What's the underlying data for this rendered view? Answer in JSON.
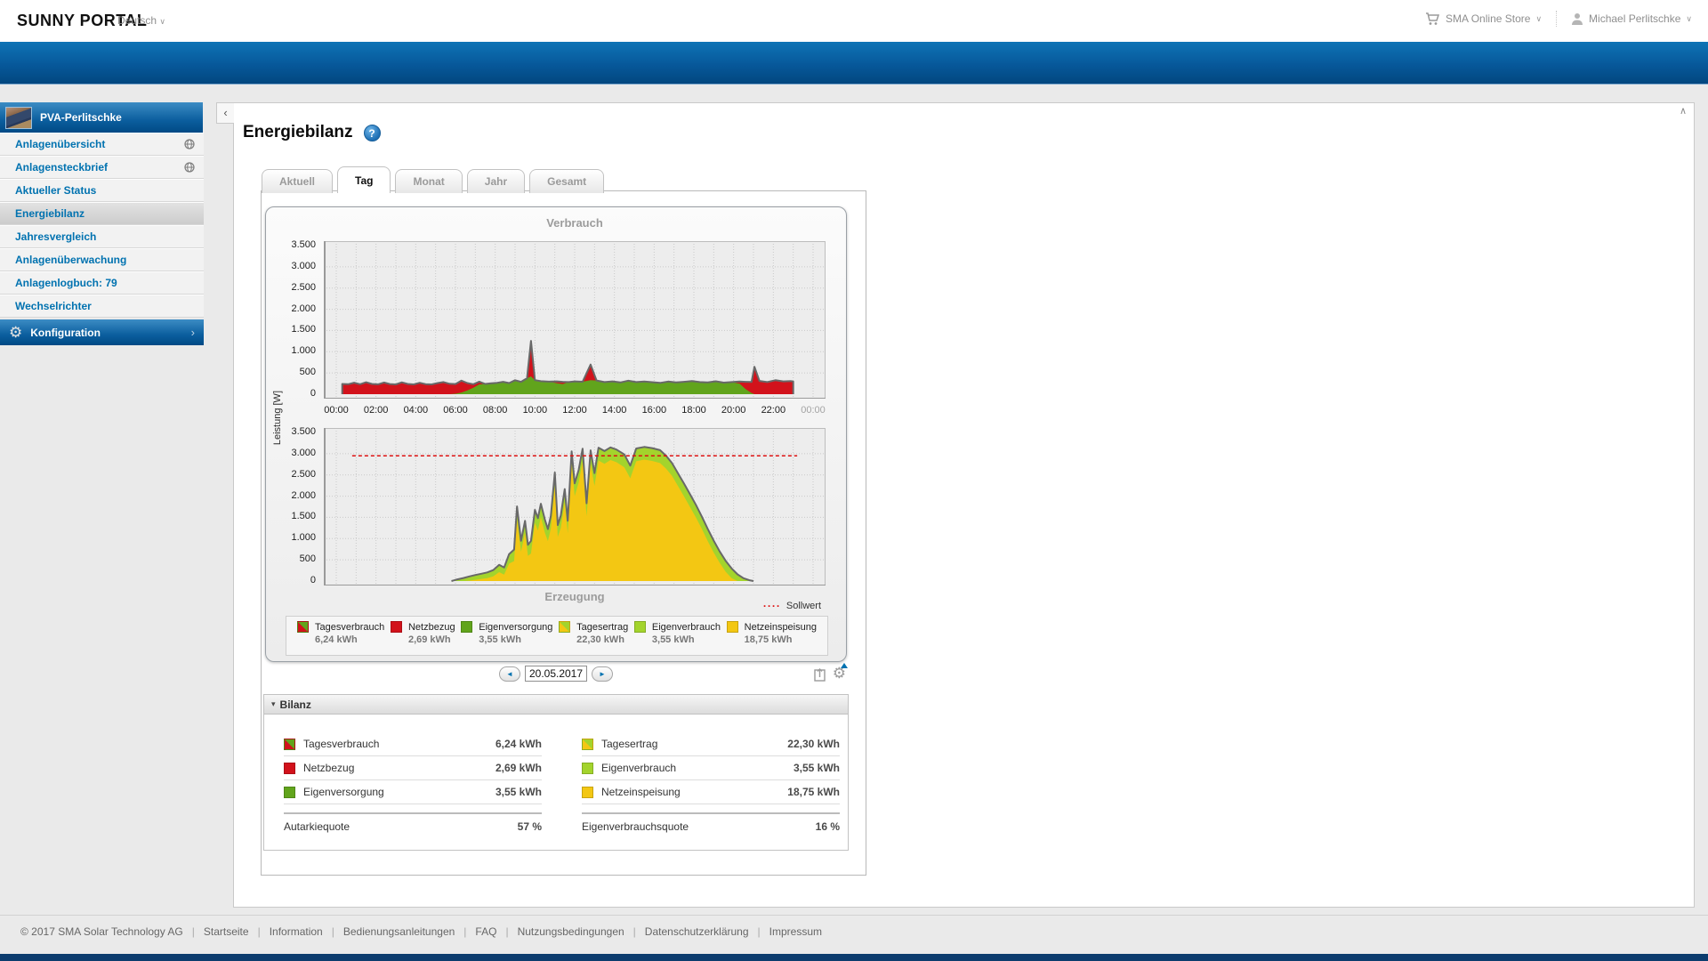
{
  "top_bar": {
    "logo": "SUNNY PORTAL",
    "language": "Deutsch",
    "store": "SMA Online Store",
    "user": "Michael Perlitschke",
    "chevron": "∨"
  },
  "sidebar": {
    "plant_name": "PVA-Perlitschke",
    "items": [
      {
        "label": "Anlagenübersicht",
        "globe": true
      },
      {
        "label": "Anlagensteckbrief",
        "globe": true
      },
      {
        "label": "Aktueller Status",
        "globe": false
      },
      {
        "label": "Energiebilanz",
        "globe": false,
        "active": true
      },
      {
        "label": "Jahresvergleich",
        "globe": false
      },
      {
        "label": "Anlagenüberwachung",
        "globe": false
      },
      {
        "label": "Anlagenlogbuch: 79",
        "globe": false
      },
      {
        "label": "Wechselrichter",
        "globe": false
      }
    ],
    "config_label": "Konfiguration",
    "config_arrow": "›"
  },
  "main": {
    "title": "Energiebilanz",
    "help_glyph": "?",
    "collapse_glyph": "‹",
    "scroll_top_glyph": "∧",
    "tabs": [
      {
        "label": "Aktuell"
      },
      {
        "label": "Tag",
        "active": true
      },
      {
        "label": "Monat"
      },
      {
        "label": "Jahr"
      },
      {
        "label": "Gesamt"
      }
    ],
    "date": "20.05.2017",
    "prev_glyph": "◄",
    "next_glyph": "►"
  },
  "legend": [
    {
      "name": "Tagesverbrauch",
      "value": "6,24 kWh",
      "swatch": "red-green-split"
    },
    {
      "name": "Netzbezug",
      "value": "2,69 kWh",
      "swatch": "red"
    },
    {
      "name": "Eigenversorgung",
      "value": "3,55 kWh",
      "swatch": "green"
    },
    {
      "name": "Tagesertrag",
      "value": "22,30 kWh",
      "swatch": "yellow-lightgreen-split"
    },
    {
      "name": "Eigenverbrauch",
      "value": "3,55 kWh",
      "swatch": "lightgreen"
    },
    {
      "name": "Netzeinspeisung",
      "value": "18,75 kWh",
      "swatch": "yellow"
    }
  ],
  "sollwert": {
    "glyph": "····",
    "label": "Sollwert"
  },
  "bilanz": {
    "header": "Bilanz",
    "collapse_glyph": "▾",
    "rows_left": [
      {
        "name": "Tagesverbrauch",
        "value": "6,24 kWh",
        "swatch": "red-green-split"
      },
      {
        "name": "Netzbezug",
        "value": "2,69 kWh",
        "swatch": "red"
      },
      {
        "name": "Eigenversorgung",
        "value": "3,55 kWh",
        "swatch": "green"
      }
    ],
    "rows_right": [
      {
        "name": "Tagesertrag",
        "value": "22,30 kWh",
        "swatch": "yellow-lightgreen-split"
      },
      {
        "name": "Eigenverbrauch",
        "value": "3,55 kWh",
        "swatch": "lightgreen"
      },
      {
        "name": "Netzeinspeisung",
        "value": "18,75 kWh",
        "swatch": "yellow"
      }
    ],
    "quote_left": {
      "label": "Autarkiequote",
      "value": "57 %"
    },
    "quote_right": {
      "label": "Eigenverbrauchsquote",
      "value": "16 %"
    }
  },
  "footer": {
    "copyright": "© 2017 SMA Solar Technology AG",
    "separator": "|",
    "links": [
      "Startseite",
      "Information",
      "Bedienungsanleitungen",
      "FAQ",
      "Nutzungsbedingungen",
      "Datenschutzerklärung",
      "Impressum"
    ]
  },
  "colors": {
    "brand_blue": "#0072b0",
    "header_gradient_top": "#0e74b6",
    "header_gradient_bottom": "#02477f",
    "consumption_red": "#d2121b",
    "self_supply_green": "#61a41c",
    "self_consumption_green": "#a3d42c",
    "feed_in_yellow": "#f3c713",
    "sollwert_red": "#dd1111",
    "chart_outline_gray": "#686868",
    "plot_background": "#ededed",
    "bottom_band_navy": "#0c3c6e"
  },
  "icons": {
    "cart-icon": "shopping cart",
    "user-icon": "person silhouette",
    "globe-icon": "globe / published on web",
    "gear-icon": "gear (settings)",
    "help-icon": "blue circle question mark",
    "export-icon": "export report page",
    "chart-settings-icon": "gear with blue arrow"
  },
  "chart_data": [
    {
      "name": "verbrauch",
      "type": "area",
      "title": "Verbrauch",
      "ylabel": "Leistung [W]",
      "ylim": [
        0,
        3500
      ],
      "yticks": [
        0,
        500,
        1000,
        1500,
        2000,
        2500,
        3000,
        3500
      ],
      "ytick_labels": [
        "0",
        "500",
        "1.000",
        "1.500",
        "2.000",
        "2.500",
        "3.000",
        "3.500"
      ],
      "xlim_hours": [
        0,
        24
      ],
      "xticks_hours": [
        0,
        2,
        4,
        6,
        8,
        10,
        12,
        14,
        16,
        18,
        20,
        22,
        24
      ],
      "xtick_labels": [
        "00:00",
        "02:00",
        "04:00",
        "06:00",
        "08:00",
        "10:00",
        "12:00",
        "14:00",
        "16:00",
        "18:00",
        "20:00",
        "22:00",
        "00:00"
      ],
      "grid": true,
      "fill_total": "#d2121b",
      "fill_secondary": "#61a41c",
      "series": [
        {
          "name": "Tagesverbrauch gesamt",
          "total_kwh": "6,24 kWh",
          "points_column": 1
        },
        {
          "name": "Eigenversorgung",
          "total_kwh": "3,55 kWh",
          "points_column": 2
        },
        {
          "name": "Netzbezug (Differenz rot)",
          "total_kwh": "2,69 kWh",
          "points_column": "1-2"
        }
      ],
      "points_format": [
        "hour",
        "verbrauch_gesamt_W",
        "eigenversorgung_W"
      ],
      "points": [
        [
          0.3,
          240,
          0
        ],
        [
          0.6,
          235,
          0
        ],
        [
          0.9,
          270,
          0
        ],
        [
          1.2,
          235,
          0
        ],
        [
          1.5,
          280,
          0
        ],
        [
          1.8,
          240,
          0
        ],
        [
          2.1,
          232,
          0
        ],
        [
          2.4,
          274,
          0
        ],
        [
          2.7,
          238,
          0
        ],
        [
          3.0,
          230,
          0
        ],
        [
          3.3,
          278,
          0
        ],
        [
          3.6,
          242,
          0
        ],
        [
          3.9,
          230,
          0
        ],
        [
          4.2,
          268,
          0
        ],
        [
          4.5,
          236,
          0
        ],
        [
          4.8,
          230,
          0
        ],
        [
          5.1,
          262,
          0
        ],
        [
          5.4,
          284,
          0
        ],
        [
          5.7,
          246,
          0
        ],
        [
          6.0,
          238,
          10
        ],
        [
          6.3,
          318,
          40
        ],
        [
          6.6,
          262,
          90
        ],
        [
          6.9,
          234,
          150
        ],
        [
          7.2,
          296,
          230
        ],
        [
          7.5,
          242,
          242
        ],
        [
          7.8,
          256,
          256
        ],
        [
          8.1,
          268,
          268
        ],
        [
          8.4,
          292,
          292
        ],
        [
          8.7,
          262,
          262
        ],
        [
          9.0,
          328,
          328
        ],
        [
          9.3,
          292,
          292
        ],
        [
          9.6,
          376,
          376
        ],
        [
          9.8,
          1255,
          420
        ],
        [
          10.0,
          332,
          332
        ],
        [
          10.3,
          306,
          306
        ],
        [
          10.7,
          296,
          296
        ],
        [
          11.1,
          302,
          260
        ],
        [
          11.4,
          292,
          238
        ],
        [
          11.7,
          286,
          286
        ],
        [
          12.0,
          302,
          302
        ],
        [
          12.4,
          294,
          294
        ],
        [
          12.8,
          698,
          330
        ],
        [
          13.1,
          322,
          322
        ],
        [
          13.5,
          286,
          286
        ],
        [
          13.9,
          302,
          302
        ],
        [
          14.3,
          276,
          276
        ],
        [
          14.7,
          318,
          318
        ],
        [
          15.1,
          286,
          286
        ],
        [
          15.5,
          300,
          300
        ],
        [
          15.9,
          282,
          282
        ],
        [
          16.3,
          266,
          266
        ],
        [
          16.7,
          298,
          298
        ],
        [
          17.1,
          276,
          276
        ],
        [
          17.5,
          292,
          292
        ],
        [
          17.9,
          308,
          308
        ],
        [
          18.3,
          286,
          286
        ],
        [
          18.7,
          276,
          276
        ],
        [
          19.1,
          304,
          304
        ],
        [
          19.5,
          272,
          272
        ],
        [
          19.9,
          286,
          286
        ],
        [
          20.3,
          298,
          250
        ],
        [
          20.6,
          292,
          120
        ],
        [
          20.9,
          288,
          30
        ],
        [
          21.05,
          645,
          0
        ],
        [
          21.3,
          312,
          0
        ],
        [
          21.7,
          286,
          0
        ],
        [
          22.1,
          328,
          0
        ],
        [
          22.5,
          302,
          0
        ],
        [
          22.9,
          308,
          0
        ],
        [
          23.0,
          300,
          0
        ]
      ]
    },
    {
      "name": "erzeugung",
      "type": "area",
      "title": "Erzeugung",
      "ylabel": "Leistung [W]",
      "ylim": [
        0,
        3500
      ],
      "yticks": [
        0,
        500,
        1000,
        1500,
        2000,
        2500,
        3000,
        3500
      ],
      "ytick_labels": [
        "0",
        "500",
        "1.000",
        "1.500",
        "2.000",
        "2.500",
        "3.000",
        "3.500"
      ],
      "xlim_hours": [
        0,
        24
      ],
      "grid": true,
      "sollwert_W": 2950,
      "sollwert_label": "Sollwert",
      "fill_total": "#a3d42c",
      "fill_secondary": "#f3c713",
      "series": [
        {
          "name": "Tagesertrag gesamt",
          "total_kwh": "22,30 kWh",
          "points_column": 1
        },
        {
          "name": "Netzeinspeisung",
          "total_kwh": "18,75 kWh",
          "points_column": 2
        },
        {
          "name": "Eigenverbrauch (Differenz hellgrün)",
          "total_kwh": "3,55 kWh",
          "points_column": "1-2"
        }
      ],
      "points_format": [
        "hour",
        "erzeugung_gesamt_W",
        "netzeinspeisung_W"
      ],
      "points": [
        [
          5.8,
          0,
          0
        ],
        [
          6.1,
          40,
          0
        ],
        [
          6.4,
          72,
          0
        ],
        [
          6.7,
          108,
          10
        ],
        [
          7.0,
          142,
          30
        ],
        [
          7.3,
          172,
          50
        ],
        [
          7.6,
          204,
          70
        ],
        [
          7.9,
          258,
          110
        ],
        [
          8.2,
          382,
          210
        ],
        [
          8.45,
          318,
          150
        ],
        [
          8.7,
          636,
          410
        ],
        [
          8.95,
          742,
          470
        ],
        [
          9.1,
          1758,
          1450
        ],
        [
          9.3,
          948,
          690
        ],
        [
          9.5,
          1418,
          1140
        ],
        [
          9.65,
          852,
          590
        ],
        [
          9.8,
          948,
          650
        ],
        [
          10.0,
          1676,
          1370
        ],
        [
          10.15,
          1482,
          1190
        ],
        [
          10.3,
          1822,
          1510
        ],
        [
          10.5,
          1448,
          1140
        ],
        [
          10.65,
          1224,
          940
        ],
        [
          10.8,
          1532,
          1230
        ],
        [
          11.0,
          2556,
          2250
        ],
        [
          11.15,
          1318,
          1040
        ],
        [
          11.3,
          1544,
          1250
        ],
        [
          11.5,
          2168,
          1860
        ],
        [
          11.65,
          1422,
          1130
        ],
        [
          11.85,
          3056,
          2750
        ],
        [
          12.0,
          2302,
          2000
        ],
        [
          12.2,
          2618,
          2320
        ],
        [
          12.4,
          3118,
          2810
        ],
        [
          12.6,
          1832,
          1530
        ],
        [
          12.8,
          3078,
          2770
        ],
        [
          13.0,
          2542,
          2240
        ],
        [
          13.2,
          3142,
          2840
        ],
        [
          13.5,
          3062,
          2760
        ],
        [
          13.8,
          3148,
          2850
        ],
        [
          14.1,
          3098,
          2800
        ],
        [
          14.5,
          2982,
          2680
        ],
        [
          14.8,
          2718,
          2420
        ],
        [
          15.1,
          3122,
          2820
        ],
        [
          15.5,
          3158,
          2860
        ],
        [
          15.9,
          3132,
          2830
        ],
        [
          16.3,
          3082,
          2780
        ],
        [
          16.6,
          2952,
          2650
        ],
        [
          16.9,
          2778,
          2480
        ],
        [
          17.2,
          2538,
          2240
        ],
        [
          17.5,
          2302,
          2000
        ],
        [
          17.8,
          2052,
          1750
        ],
        [
          18.1,
          1798,
          1500
        ],
        [
          18.4,
          1522,
          1230
        ],
        [
          18.7,
          1228,
          940
        ],
        [
          19.0,
          952,
          670
        ],
        [
          19.3,
          698,
          430
        ],
        [
          19.6,
          478,
          220
        ],
        [
          19.9,
          298,
          70
        ],
        [
          20.2,
          158,
          0
        ],
        [
          20.5,
          68,
          0
        ],
        [
          20.8,
          18,
          0
        ],
        [
          21.0,
          0,
          0
        ]
      ]
    }
  ]
}
